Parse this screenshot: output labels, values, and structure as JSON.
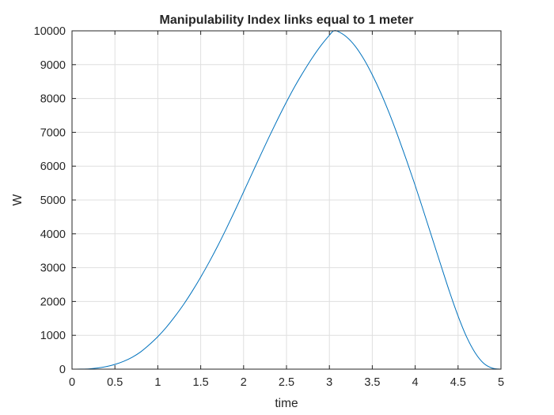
{
  "chart_data": {
    "type": "line",
    "title": "Manipulability Index links equal to 1 meter",
    "xlabel": "time",
    "ylabel": "W",
    "xlim": [
      0,
      5
    ],
    "ylim": [
      0,
      10000
    ],
    "x_ticks": [
      0,
      0.5,
      1,
      1.5,
      2,
      2.5,
      3,
      3.5,
      4,
      4.5,
      5
    ],
    "x_tick_labels": [
      "0",
      "0.5",
      "1",
      "1.5",
      "2",
      "2.5",
      "3",
      "3.5",
      "4",
      "4.5",
      "5"
    ],
    "y_ticks": [
      0,
      1000,
      2000,
      3000,
      4000,
      5000,
      6000,
      7000,
      8000,
      9000,
      10000
    ],
    "y_tick_labels": [
      "0",
      "1000",
      "2000",
      "3000",
      "4000",
      "5000",
      "6000",
      "7000",
      "8000",
      "9000",
      "10000"
    ],
    "grid": true,
    "line_color": "#0072BD",
    "series": [
      {
        "x": [
          0,
          0.1,
          0.2,
          0.3,
          0.4,
          0.5,
          0.6,
          0.7,
          0.8,
          0.9,
          1.0,
          1.1,
          1.2,
          1.3,
          1.4,
          1.5,
          1.6,
          1.7,
          1.8,
          1.9,
          2.0,
          2.1,
          2.2,
          2.3,
          2.4,
          2.5,
          2.6,
          2.7,
          2.8,
          2.9,
          3.0,
          3.05,
          3.1,
          3.2,
          3.3,
          3.4,
          3.5,
          3.6,
          3.7,
          3.8,
          3.9,
          4.0,
          4.1,
          4.2,
          4.3,
          4.4,
          4.5,
          4.6,
          4.7,
          4.8,
          4.9,
          5.0
        ],
        "y": [
          0,
          2,
          10,
          35,
          75,
          140,
          230,
          350,
          510,
          720,
          960,
          1240,
          1560,
          1910,
          2300,
          2720,
          3170,
          3650,
          4160,
          4690,
          5240,
          5790,
          6340,
          6880,
          7400,
          7900,
          8370,
          8800,
          9200,
          9560,
          9870,
          10000,
          9980,
          9820,
          9550,
          9170,
          8700,
          8160,
          7550,
          6880,
          6170,
          5430,
          4650,
          3860,
          3070,
          2290,
          1570,
          950,
          480,
          170,
          30,
          0
        ]
      }
    ]
  }
}
